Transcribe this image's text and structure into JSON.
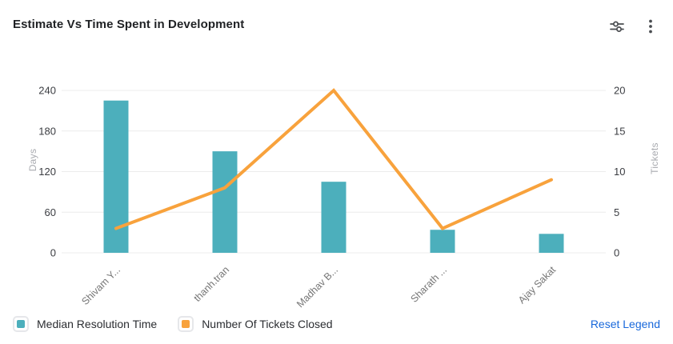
{
  "header": {
    "title": "Estimate Vs Time Spent in Development"
  },
  "toolbar": {
    "icons": [
      "sliders-icon",
      "kebab-menu-icon"
    ],
    "icon_color": "#4a4d51"
  },
  "chart_data": {
    "type": "combo-bar-line",
    "title": "Estimate Vs Time Spent in Development",
    "categories": [
      "Shivam Y...",
      "thanh.tran",
      "Madhav B...",
      "Sharath ...",
      "Ajay Sakat"
    ],
    "series": [
      {
        "name": "Median Resolution Time",
        "type": "bar",
        "axis": "left",
        "color": "#4cafbc",
        "values": [
          225,
          150,
          105,
          34,
          28
        ]
      },
      {
        "name": "Number Of Tickets Closed",
        "type": "line",
        "axis": "right",
        "color": "#f8a23c",
        "values": [
          3,
          8,
          20,
          3,
          9
        ]
      }
    ],
    "left_axis": {
      "label": "Days",
      "ticks": [
        0,
        60,
        120,
        180,
        240
      ],
      "range": [
        0,
        240
      ]
    },
    "right_axis": {
      "label": "Tickets",
      "ticks": [
        0,
        5,
        10,
        15,
        20
      ],
      "range": [
        0,
        20
      ]
    },
    "grid": true,
    "gridline_color": "#ececec",
    "legend_position": "bottom"
  },
  "legend": {
    "items": [
      {
        "label": "Median Resolution Time",
        "color": "#4cafbc"
      },
      {
        "label": "Number Of Tickets Closed",
        "color": "#f8a23c"
      }
    ],
    "reset_label": "Reset Legend",
    "reset_color": "#1868db"
  }
}
